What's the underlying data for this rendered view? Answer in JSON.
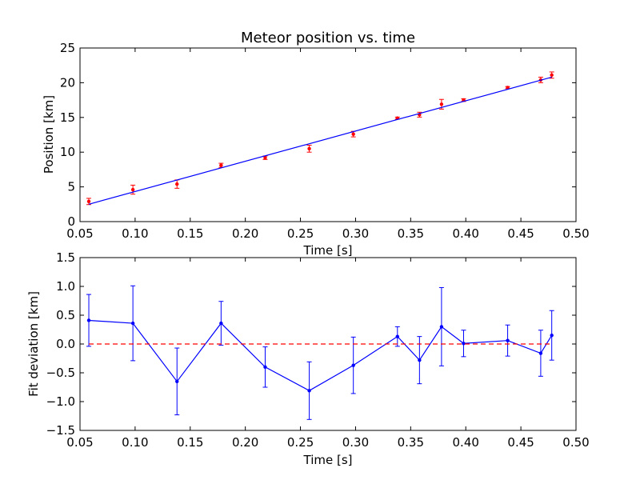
{
  "chart_data": [
    {
      "type": "scatter",
      "title": "Meteor position vs. time",
      "xlabel": "Time [s]",
      "ylabel": "Position [km]",
      "xlim": [
        0.05,
        0.5
      ],
      "ylim": [
        0,
        25
      ],
      "grid": false,
      "xticks": [
        "0.05",
        "0.10",
        "0.15",
        "0.20",
        "0.25",
        "0.30",
        "0.35",
        "0.40",
        "0.45",
        "0.50"
      ],
      "xtick_values": [
        0.05,
        0.1,
        0.15,
        0.2,
        0.25,
        0.3,
        0.35,
        0.4,
        0.45,
        0.5
      ],
      "yticks": [
        "0",
        "5",
        "10",
        "15",
        "20",
        "25"
      ],
      "ytick_values": [
        0,
        5,
        10,
        15,
        20,
        25
      ],
      "series": [
        {
          "kind": "points_with_error",
          "color": "#ff0000",
          "x": [
            0.058,
            0.098,
            0.138,
            0.178,
            0.218,
            0.258,
            0.298,
            0.338,
            0.358,
            0.378,
            0.398,
            0.438,
            0.468,
            0.478
          ],
          "y": [
            2.9,
            4.6,
            5.4,
            8.1,
            9.2,
            10.5,
            12.6,
            14.9,
            15.4,
            16.9,
            17.5,
            19.3,
            20.4,
            21.1
          ],
          "err": [
            0.45,
            0.65,
            0.6,
            0.3,
            0.25,
            0.5,
            0.4,
            0.15,
            0.35,
            0.7,
            0.2,
            0.15,
            0.4,
            0.45
          ]
        },
        {
          "kind": "fit_line",
          "color": "#0000ff",
          "x": [
            0.058,
            0.478
          ],
          "y": [
            2.5,
            20.8
          ]
        }
      ]
    },
    {
      "type": "line",
      "title": "",
      "xlabel": "Time [s]",
      "ylabel": "Fit deviation [km]",
      "xlim": [
        0.05,
        0.5
      ],
      "ylim": [
        -1.5,
        1.5
      ],
      "grid": false,
      "xticks": [
        "0.05",
        "0.10",
        "0.15",
        "0.20",
        "0.25",
        "0.30",
        "0.35",
        "0.40",
        "0.45",
        "0.50"
      ],
      "xtick_values": [
        0.05,
        0.1,
        0.15,
        0.2,
        0.25,
        0.3,
        0.35,
        0.4,
        0.45,
        0.5
      ],
      "yticks": [
        "1.5",
        "1.0",
        "0.5",
        "0.0",
        "−0.5",
        "−1.0",
        "−1.5"
      ],
      "ytick_values": [
        1.5,
        1.0,
        0.5,
        0.0,
        -0.5,
        -1.0,
        -1.5
      ],
      "series": [
        {
          "kind": "line_with_error",
          "color": "#0000ff",
          "x": [
            0.058,
            0.098,
            0.138,
            0.178,
            0.218,
            0.258,
            0.298,
            0.338,
            0.358,
            0.378,
            0.398,
            0.438,
            0.468,
            0.478
          ],
          "y": [
            0.41,
            0.36,
            -0.65,
            0.36,
            -0.4,
            -0.81,
            -0.37,
            0.13,
            -0.28,
            0.3,
            0.01,
            0.06,
            -0.16,
            0.15
          ],
          "err": [
            0.45,
            0.65,
            0.58,
            0.38,
            0.35,
            0.5,
            0.49,
            0.17,
            0.41,
            0.68,
            0.23,
            0.27,
            0.4,
            0.43
          ]
        },
        {
          "kind": "reference_line",
          "color": "#ff0000",
          "style": "dashed",
          "x": [
            0.058,
            0.478
          ],
          "y": [
            0.0,
            0.0
          ]
        }
      ]
    }
  ]
}
